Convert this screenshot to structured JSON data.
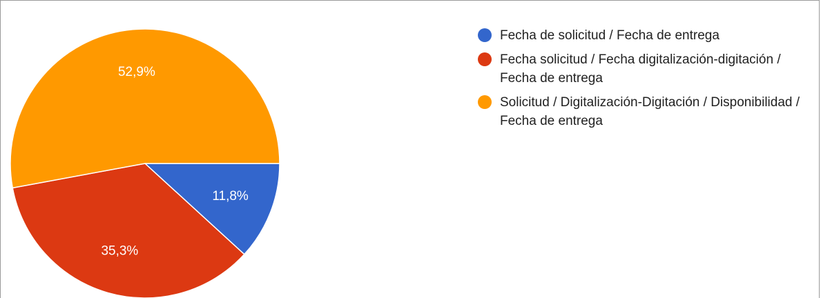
{
  "chart_data": {
    "type": "pie",
    "categories": [
      "Fecha de solicitud / Fecha de entrega",
      "Fecha solicitud / Fecha digitalización-digitación / Fecha de entrega",
      "Solicitud / Digitalización-Digitación / Disponibilidad / Fecha de entrega"
    ],
    "values": [
      11.8,
      35.3,
      52.9
    ],
    "value_labels": [
      "11,8%",
      "35,3%",
      "52,9%"
    ],
    "colors": [
      "#3366cc",
      "#dc3912",
      "#ff9900"
    ],
    "legend": "right"
  }
}
